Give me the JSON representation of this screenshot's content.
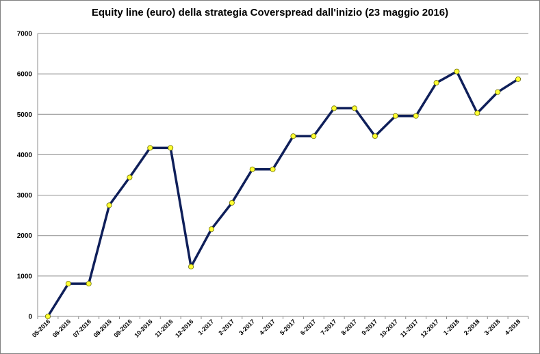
{
  "chart_data": {
    "type": "line",
    "title": "Equity line (euro) della strategia Coverspread dall'inizio (23 maggio 2016)",
    "xlabel": "",
    "ylabel": "",
    "ylim": [
      0,
      7000
    ],
    "yticks": [
      "0",
      "1000",
      "2000",
      "3000",
      "4000",
      "5000",
      "6000",
      "7000"
    ],
    "grid": true,
    "legend": "none",
    "categories": [
      "05-2016",
      "06-2016",
      "07-2016",
      "08-2016",
      "09-2016",
      "10-2016",
      "11-2016",
      "12-2016",
      "1-2017",
      "2-2017",
      "3-2017",
      "4-2017",
      "5-2017",
      "6-2017",
      "7-2017",
      "8-2017",
      "9-2017",
      "10-2017",
      "11-2017",
      "12-2017",
      "1-2018",
      "2-2018",
      "3-2018",
      "4-2018"
    ],
    "values": [
      0,
      810,
      810,
      2750,
      3440,
      4170,
      4170,
      1230,
      2160,
      2810,
      3640,
      3640,
      4460,
      4460,
      5150,
      5150,
      4460,
      4960,
      4960,
      5780,
      6060,
      5030,
      5550,
      5870
    ],
    "colors": {
      "line": "#0f1f5a",
      "marker": "#ffff33",
      "grid": "#8c8c8c"
    }
  }
}
